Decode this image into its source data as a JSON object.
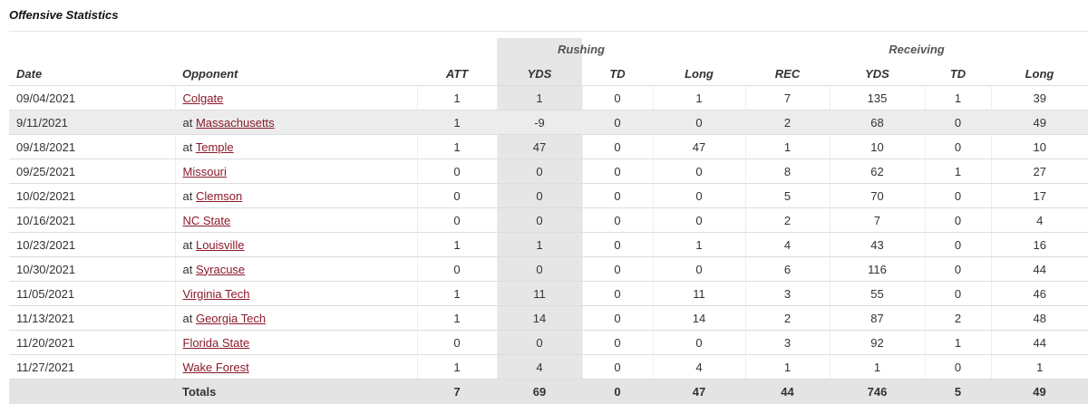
{
  "title": "Offensive Statistics",
  "groups": [
    "Rushing",
    "Receiving"
  ],
  "columns": [
    "Date",
    "Opponent",
    "ATT",
    "YDS",
    "TD",
    "Long",
    "REC",
    "YDS",
    "TD",
    "Long"
  ],
  "rows": [
    {
      "date": "09/04/2021",
      "opponent": {
        "name": "Colgate"
      },
      "stats": [
        1,
        1,
        0,
        1,
        7,
        135,
        1,
        39
      ]
    },
    {
      "date": "9/11/2021",
      "opponent": {
        "prefix": "at",
        "name": "Massachusetts"
      },
      "stats": [
        1,
        -9,
        0,
        0,
        2,
        68,
        0,
        49
      ]
    },
    {
      "date": "09/18/2021",
      "opponent": {
        "prefix": "at",
        "name": "Temple"
      },
      "stats": [
        1,
        47,
        0,
        47,
        1,
        10,
        0,
        10
      ]
    },
    {
      "date": "09/25/2021",
      "opponent": {
        "name": "Missouri"
      },
      "stats": [
        0,
        0,
        0,
        0,
        8,
        62,
        1,
        27
      ]
    },
    {
      "date": "10/02/2021",
      "opponent": {
        "prefix": "at",
        "name": "Clemson"
      },
      "stats": [
        0,
        0,
        0,
        0,
        5,
        70,
        0,
        17
      ]
    },
    {
      "date": "10/16/2021",
      "opponent": {
        "name": "NC State"
      },
      "stats": [
        0,
        0,
        0,
        0,
        2,
        7,
        0,
        4
      ]
    },
    {
      "date": "10/23/2021",
      "opponent": {
        "prefix": "at",
        "name": "Louisville"
      },
      "stats": [
        1,
        1,
        0,
        1,
        4,
        43,
        0,
        16
      ]
    },
    {
      "date": "10/30/2021",
      "opponent": {
        "prefix": "at",
        "name": "Syracuse"
      },
      "stats": [
        0,
        0,
        0,
        0,
        6,
        116,
        0,
        44
      ]
    },
    {
      "date": "11/05/2021",
      "opponent": {
        "name": "Virginia Tech"
      },
      "stats": [
        1,
        11,
        0,
        11,
        3,
        55,
        0,
        46
      ]
    },
    {
      "date": "11/13/2021",
      "opponent": {
        "prefix": "at",
        "name": "Georgia Tech"
      },
      "stats": [
        1,
        14,
        0,
        14,
        2,
        87,
        2,
        48
      ]
    },
    {
      "date": "11/20/2021",
      "opponent": {
        "name": "Florida State"
      },
      "stats": [
        0,
        0,
        0,
        0,
        3,
        92,
        1,
        44
      ]
    },
    {
      "date": "11/27/2021",
      "opponent": {
        "name": "Wake Forest"
      },
      "stats": [
        1,
        4,
        0,
        4,
        1,
        1,
        0,
        1
      ]
    }
  ],
  "totals": {
    "label": "Totals",
    "stats": [
      7,
      69,
      0,
      47,
      44,
      746,
      5,
      49
    ]
  }
}
